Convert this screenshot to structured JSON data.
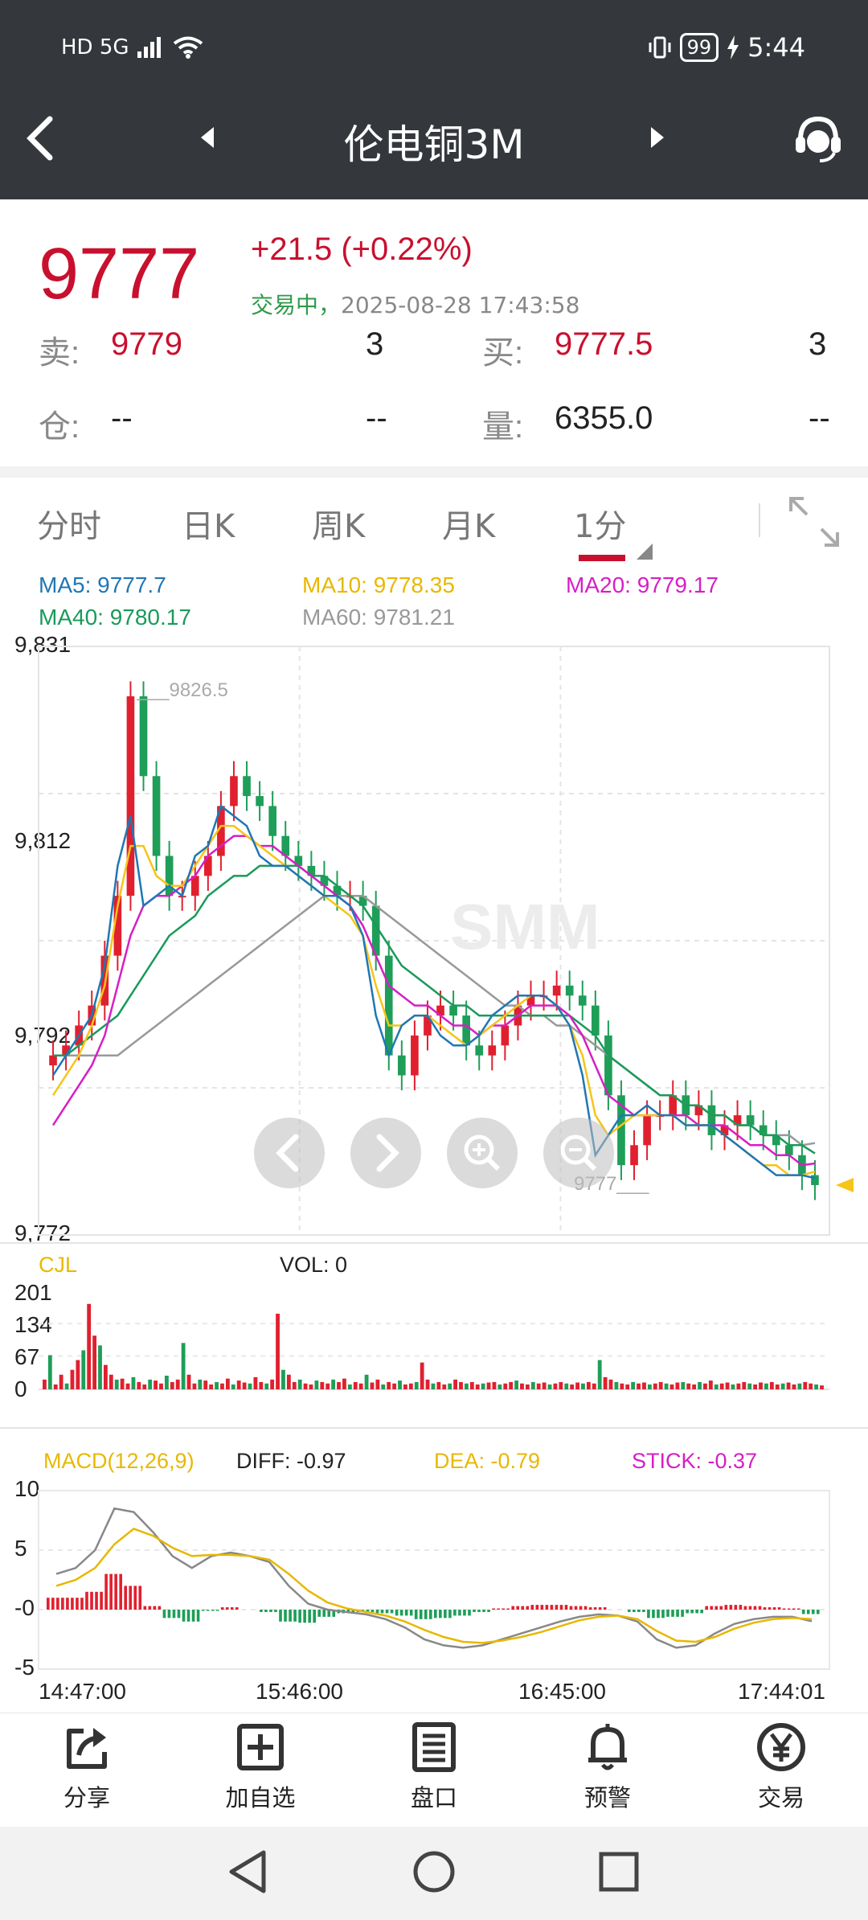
{
  "status_bar": {
    "left": "HD 5G",
    "battery": "99",
    "time": "5:44"
  },
  "header": {
    "title": "伦电铜3M"
  },
  "quote": {
    "price": "9777",
    "change": "+21.5",
    "change_pct": "(+0.22%)",
    "trade_status": "交易中，",
    "timestamp": "2025-08-28 17:43:58",
    "sell_label": "卖:",
    "sell_price": "9779",
    "sell_qty": "3",
    "buy_label": "买:",
    "buy_price": "9777.5",
    "buy_qty": "3",
    "oi_label": "仓:",
    "oi_value": "--",
    "oi_change": "--",
    "vol_label": "量:",
    "vol_value": "6355.0",
    "vol_change": "--"
  },
  "tabs": [
    {
      "label": "分时"
    },
    {
      "label": "日K"
    },
    {
      "label": "周K"
    },
    {
      "label": "月K"
    },
    {
      "label": "1分"
    }
  ],
  "ma": {
    "ma5": "MA5: 9777.7",
    "ma10": "MA10: 9778.35",
    "ma20": "MA20: 9779.17",
    "ma40": "MA40: 9780.17",
    "ma60": "MA60: 9781.21",
    "colors": {
      "ma5": "#1f77b4",
      "ma10": "#f5c518",
      "ma20": "#d61fc4",
      "ma40": "#1a9a5a",
      "ma60": "#999999"
    }
  },
  "colors": {
    "up": "#e0202e",
    "down": "#1e9e58",
    "accent": "#c8102e",
    "header_bg": "#34373c"
  },
  "chart_data": [
    {
      "type": "candlestick",
      "y_ticks": [
        "9,831",
        "9,812",
        "9,792",
        "9,772"
      ],
      "ylim": [
        9772,
        9831
      ],
      "max_label": "9826.5",
      "last_label": "9777",
      "x_ticks": [
        "14:47:00",
        "15:46:00",
        "16:45:00",
        "17:44:01"
      ],
      "close": [
        9790,
        9791,
        9793,
        9795,
        9800,
        9806,
        9826,
        9818,
        9810,
        9806,
        9806,
        9808,
        9810,
        9815,
        9818,
        9816,
        9815,
        9812,
        9810,
        9809,
        9808,
        9807,
        9806,
        9806,
        9805,
        9800,
        9790,
        9788,
        9792,
        9794,
        9795,
        9794,
        9791,
        9790,
        9791,
        9793,
        9795,
        9796,
        9796,
        9797,
        9796,
        9795,
        9792,
        9786,
        9779,
        9781,
        9784,
        9784,
        9786,
        9784,
        9785,
        9782,
        9783,
        9784,
        9783,
        9782,
        9781,
        9780,
        9778,
        9777
      ],
      "ma5": [
        9788,
        9790,
        9792,
        9794,
        9799,
        9809,
        9814,
        9805,
        9806,
        9807,
        9806,
        9810,
        9811,
        9815,
        9814,
        9813,
        9810,
        9809,
        9809,
        9808,
        9807,
        9806,
        9806,
        9805,
        9802,
        9794,
        9790,
        9793,
        9794,
        9794,
        9792,
        9791,
        9791,
        9792,
        9794,
        9795,
        9796,
        9796,
        9796,
        9795,
        9793,
        9788,
        9780,
        9782,
        9784,
        9784,
        9785,
        9784,
        9784,
        9783,
        9783,
        9783,
        9782,
        9781,
        9780,
        9779,
        9778,
        9778,
        9778,
        9777.7
      ],
      "ma10": [
        9786,
        9788,
        9790,
        9793,
        9797,
        9805,
        9811,
        9811,
        9808,
        9807,
        9807,
        9809,
        9811,
        9813,
        9813,
        9812,
        9811,
        9810,
        9809,
        9808,
        9807,
        9806,
        9805,
        9804,
        9802,
        9797,
        9793,
        9793,
        9794,
        9794,
        9793,
        9792,
        9791,
        9792,
        9793,
        9794,
        9795,
        9796,
        9796,
        9795,
        9793,
        9790,
        9784,
        9782,
        9783,
        9784,
        9784,
        9784,
        9784,
        9783,
        9783,
        9783,
        9782,
        9781,
        9780,
        9779,
        9779,
        9778,
        9778,
        9778.35
      ],
      "ma20": [
        9783,
        9785,
        9787,
        9789,
        9792,
        9797,
        9802,
        9805,
        9806,
        9806,
        9807,
        9808,
        9810,
        9811,
        9812,
        9812,
        9811,
        9811,
        9810,
        9809,
        9808,
        9807,
        9806,
        9805,
        9803,
        9800,
        9797,
        9796,
        9795,
        9795,
        9794,
        9793,
        9793,
        9792,
        9793,
        9793,
        9794,
        9795,
        9795,
        9795,
        9794,
        9792,
        9789,
        9786,
        9785,
        9784,
        9784,
        9784,
        9784,
        9784,
        9783,
        9783,
        9783,
        9782,
        9781,
        9781,
        9780,
        9780,
        9779,
        9779.17
      ],
      "ma40": [
        9790,
        9790,
        9791,
        9792,
        9793,
        9794,
        9796,
        9798,
        9800,
        9802,
        9803,
        9804,
        9806,
        9807,
        9808,
        9808,
        9809,
        9809,
        9809,
        9809,
        9808,
        9808,
        9807,
        9806,
        9805,
        9803,
        9801,
        9799,
        9798,
        9797,
        9796,
        9795,
        9795,
        9794,
        9794,
        9794,
        9794,
        9794,
        9794,
        9794,
        9794,
        9793,
        9792,
        9790,
        9789,
        9788,
        9787,
        9786,
        9786,
        9785,
        9785,
        9784,
        9784,
        9783,
        9783,
        9782,
        9782,
        9781,
        9781,
        9780.17
      ],
      "ma60": [
        9790,
        9790,
        9790,
        9790,
        9790,
        9790,
        9791,
        9792,
        9793,
        9794,
        9795,
        9796,
        9797,
        9798,
        9799,
        9800,
        9801,
        9802,
        9803,
        9804,
        9805,
        9806,
        9806,
        9806,
        9806,
        9805,
        9804,
        9803,
        9802,
        9801,
        9800,
        9799,
        9798,
        9797,
        9796,
        9795,
        9795,
        9794,
        9794,
        9793,
        9793,
        9792,
        9791,
        9790,
        9789,
        9788,
        9787,
        9786,
        9786,
        9785,
        9785,
        9784,
        9784,
        9783,
        9783,
        9782,
        9782,
        9782,
        9781,
        9781.21
      ]
    },
    {
      "type": "bar",
      "title": "CJL",
      "vol_text": "VOL: 0",
      "y_ticks": [
        "201",
        "134",
        "67",
        "0"
      ],
      "ylim": [
        0,
        201
      ],
      "values": [
        20,
        70,
        10,
        30,
        12,
        40,
        60,
        80,
        175,
        110,
        90,
        50,
        30,
        20,
        22,
        12,
        25,
        15,
        10,
        20,
        18,
        12,
        28,
        15,
        20,
        95,
        30,
        12,
        20,
        18,
        10,
        15,
        12,
        22,
        10,
        18,
        14,
        12,
        25,
        15,
        12,
        20,
        155,
        40,
        30,
        15,
        20,
        12,
        10,
        18,
        15,
        12,
        20,
        15,
        22,
        10,
        15,
        12,
        30,
        14,
        20,
        10,
        15,
        12,
        18,
        10,
        12,
        15,
        55,
        20,
        12,
        15,
        10,
        12,
        20,
        15,
        12,
        15,
        10,
        12,
        14,
        15,
        10,
        12,
        15,
        18,
        12,
        10,
        15,
        12,
        14,
        10,
        12,
        15,
        12,
        10,
        14,
        12,
        15,
        12,
        60,
        25,
        20,
        15,
        12,
        10,
        15,
        12,
        14,
        10,
        12,
        15,
        12,
        10,
        14,
        15,
        12,
        10,
        15,
        12,
        18,
        10,
        12,
        14,
        10,
        12,
        15,
        12,
        10,
        14,
        12,
        15,
        10,
        12,
        14,
        10,
        12,
        15,
        12,
        10,
        8
      ],
      "up_flags": "alternating"
    },
    {
      "type": "macd",
      "title": "MACD(12,26,9)",
      "diff": "DIFF: -0.97",
      "dea": "DEA: -0.79",
      "stick": "STICK: -0.37",
      "y_ticks": [
        "10",
        "5",
        "-0",
        "-5"
      ],
      "ylim": [
        -5,
        10
      ],
      "diff_line": [
        3.0,
        3.5,
        5.0,
        8.5,
        8.2,
        6.5,
        4.5,
        3.5,
        4.5,
        4.8,
        4.5,
        4.0,
        2.0,
        0.5,
        0.0,
        -0.2,
        -0.4,
        -0.8,
        -1.5,
        -2.5,
        -3.0,
        -3.2,
        -3.0,
        -2.5,
        -2.0,
        -1.5,
        -1.0,
        -0.6,
        -0.4,
        -0.5,
        -1.0,
        -2.5,
        -3.2,
        -3.0,
        -2.0,
        -1.2,
        -0.8,
        -0.6,
        -0.6,
        -0.97
      ],
      "dea_line": [
        2.0,
        2.5,
        3.5,
        5.5,
        6.8,
        6.2,
        5.2,
        4.5,
        4.6,
        4.6,
        4.5,
        4.2,
        3.0,
        1.6,
        0.6,
        0.1,
        -0.2,
        -0.5,
        -1.0,
        -1.7,
        -2.3,
        -2.7,
        -2.8,
        -2.6,
        -2.3,
        -1.9,
        -1.4,
        -0.9,
        -0.6,
        -0.5,
        -0.8,
        -1.8,
        -2.6,
        -2.7,
        -2.3,
        -1.6,
        -1.1,
        -0.8,
        -0.7,
        -0.79
      ],
      "stick_bars": [
        1.0,
        1.0,
        1.5,
        3.0,
        2.0,
        0.3,
        -0.7,
        -1.0,
        -0.1,
        0.2,
        0.0,
        -0.2,
        -1.0,
        -1.1,
        -0.6,
        -0.3,
        -0.2,
        -0.3,
        -0.5,
        -0.8,
        -0.7,
        -0.5,
        -0.2,
        0.1,
        0.3,
        0.4,
        0.4,
        0.3,
        0.2,
        0.0,
        -0.2,
        -0.7,
        -0.6,
        -0.3,
        0.3,
        0.4,
        0.3,
        0.2,
        0.1,
        -0.37
      ]
    }
  ],
  "toolbar": [
    {
      "label": "分享",
      "icon": "share-icon"
    },
    {
      "label": "加自选",
      "icon": "add-watchlist-icon"
    },
    {
      "label": "盘口",
      "icon": "orderbook-icon"
    },
    {
      "label": "预警",
      "icon": "bell-icon"
    },
    {
      "label": "交易",
      "icon": "yen-icon"
    }
  ]
}
